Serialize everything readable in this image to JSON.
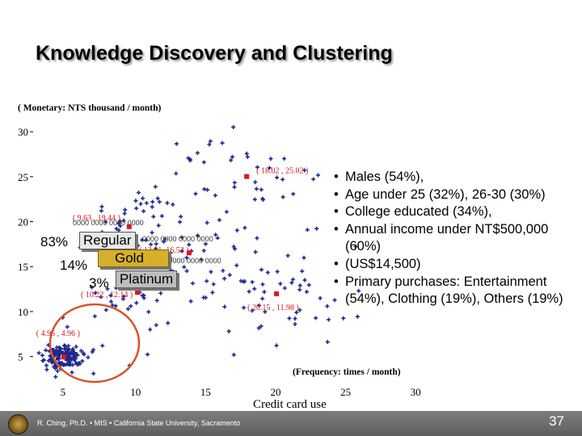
{
  "slide": {
    "title": "Knowledge Discovery and Clustering",
    "page_number": "37",
    "footer": "R. Ching, Ph.D. • MIS • California State University, Sacramento"
  },
  "chart_data": {
    "type": "scatter",
    "ylabel": "( Monetary: NTS thousand / month)",
    "xlabel": "(Frequency: times / month)",
    "x_caption": "Credit card use",
    "xlim": [
      3,
      31
    ],
    "ylim": [
      2,
      31
    ],
    "x_ticks": [
      5,
      10,
      15,
      20,
      25,
      30
    ],
    "y_ticks": [
      5,
      10,
      15,
      20,
      25,
      30
    ],
    "centroids": [
      {
        "label": "( 18.02 , 25.02 )",
        "x": 18.02,
        "y": 25.02
      },
      {
        "label": "( 9.63 , 19.44 )",
        "x": 9.63,
        "y": 19.44
      },
      {
        "label": "( 4.95 , 4.96 )",
        "x": 4.95,
        "y": 4.96
      },
      {
        "label": "( 20.15 , 11.98 )",
        "x": 20.15,
        "y": 11.98
      },
      {
        "label": "( 13.91, 16.53 )",
        "x": 13.91,
        "y": 16.53
      },
      {
        "label": "( 10.22 , 12.14 )",
        "x": 10.22,
        "y": 12.14
      }
    ],
    "clusters": [
      {
        "cx": 4.95,
        "cy": 4.96,
        "sx": 0.9,
        "sy": 0.9,
        "n": 90
      },
      {
        "cx": 9.63,
        "cy": 19.44,
        "sx": 2.0,
        "sy": 1.8,
        "n": 40
      },
      {
        "cx": 18.02,
        "cy": 25.02,
        "sx": 3.0,
        "sy": 2.8,
        "n": 45
      },
      {
        "cx": 20.15,
        "cy": 11.98,
        "sx": 2.6,
        "sy": 2.6,
        "n": 55
      },
      {
        "cx": 13.91,
        "cy": 16.53,
        "sx": 2.4,
        "sy": 2.4,
        "n": 40
      },
      {
        "cx": 10.22,
        "cy": 12.14,
        "sx": 2.6,
        "sy": 2.4,
        "n": 45
      }
    ],
    "marker_color": "#1f2a8c",
    "centroid_color": "#e0141e",
    "centroid_label_color": "#d4141c",
    "highlight_circle_color": "#d9532a"
  },
  "segments": {
    "code_text": "0000 0000 0000 0000",
    "rows": [
      {
        "percent": "83%",
        "label": "Regular"
      },
      {
        "percent": "14%",
        "label": "Gold"
      },
      {
        "percent": "3%",
        "label": "Platinum"
      }
    ]
  },
  "profile": {
    "bullets": [
      "Males (54%),",
      "Age under 25 (32%), 26-30 (30%)",
      "College educated (34%),",
      "Annual income under NT$500,000 (60%)",
      "(US$14,500)",
      "Primary purchases: Entertainment (54%), Clothing (19%), Others (19%)"
    ]
  }
}
